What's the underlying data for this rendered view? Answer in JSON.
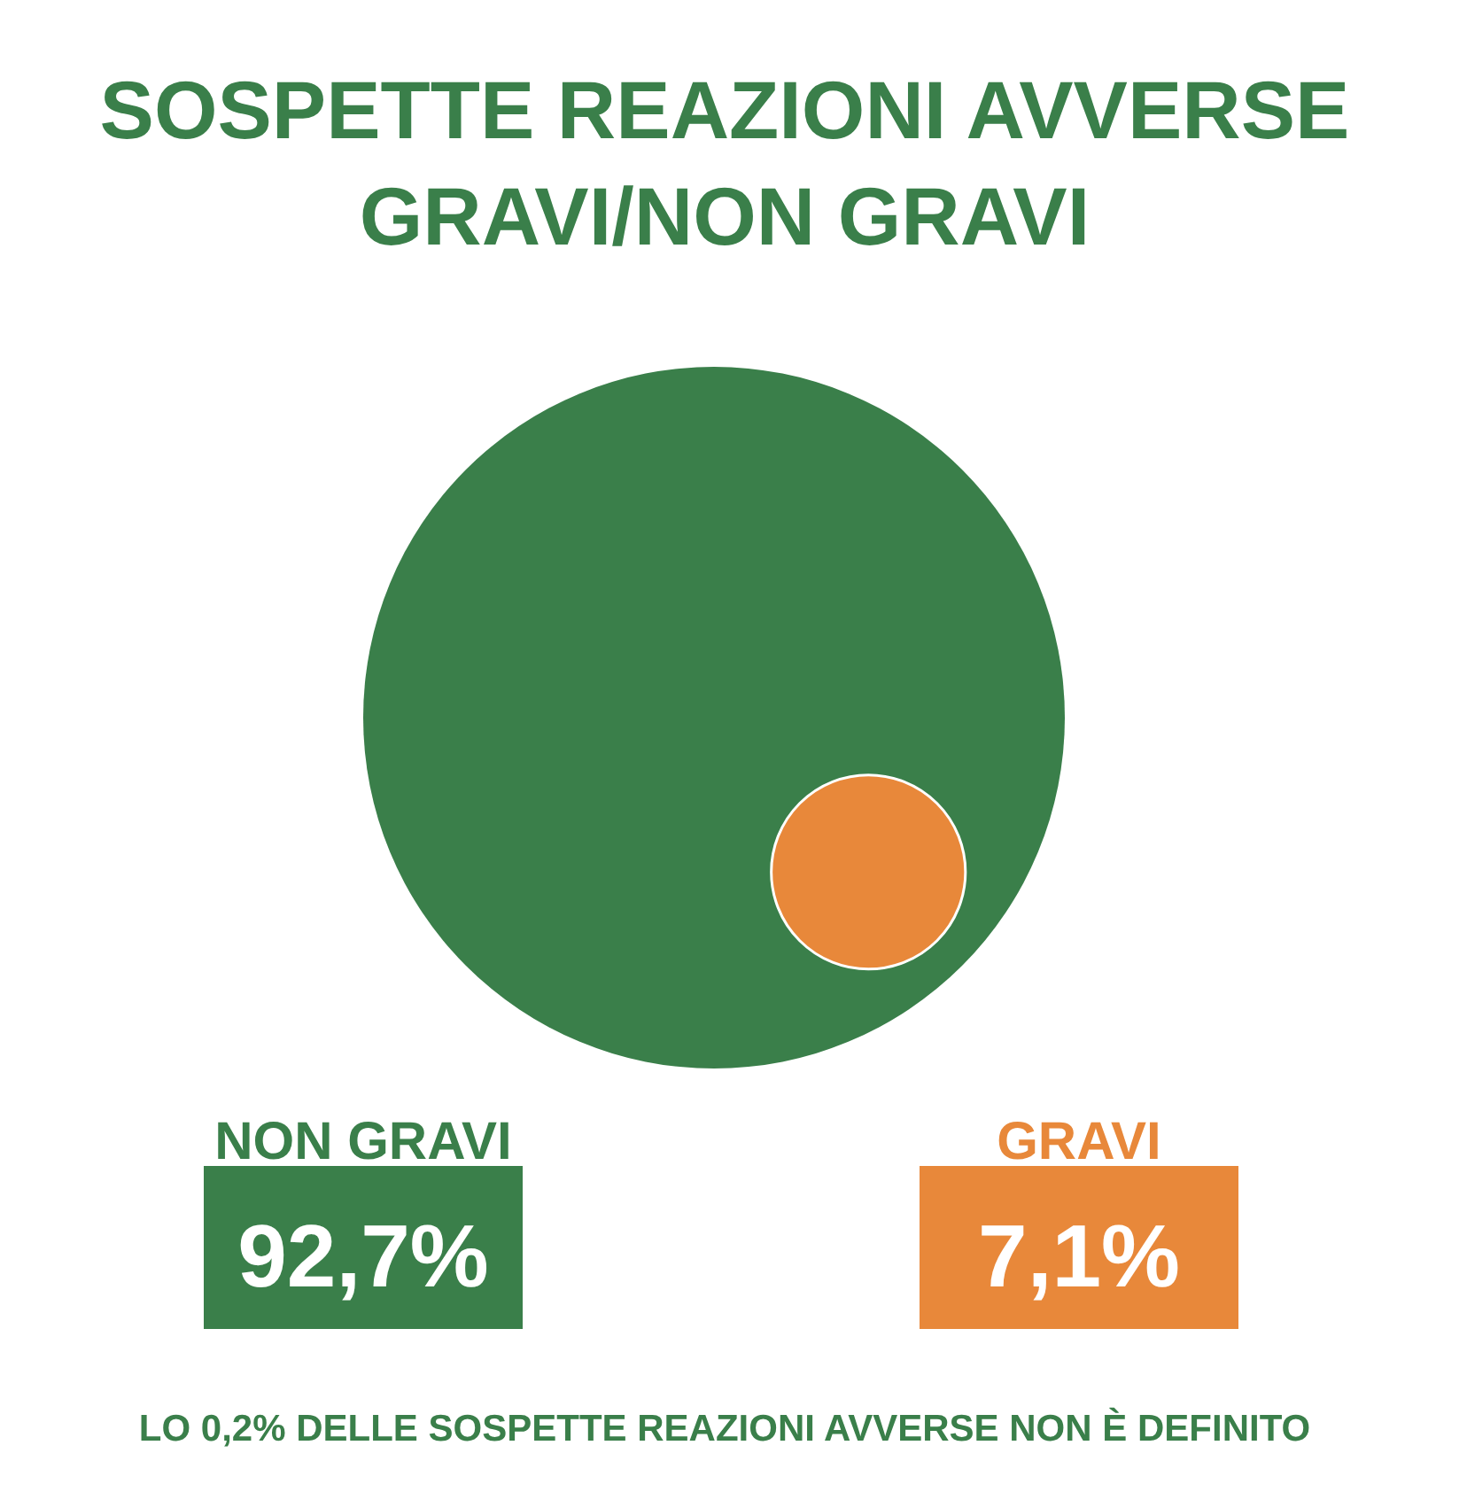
{
  "chart_data": {
    "type": "other",
    "title": "SOSPETTE REAZIONI AVVERSE GRAVI/NON GRAVI",
    "categories": [
      "NON GRAVI",
      "GRAVI"
    ],
    "values": [
      92.7,
      7.1
    ],
    "value_labels": [
      "92,7%",
      "7,1%"
    ],
    "colors": [
      "#3a7f4a",
      "#e8883a"
    ],
    "annotations": [
      "LO 0,2% DELLE SOSPETTE REAZIONI AVVERSE NON È DEFINITO"
    ]
  }
}
